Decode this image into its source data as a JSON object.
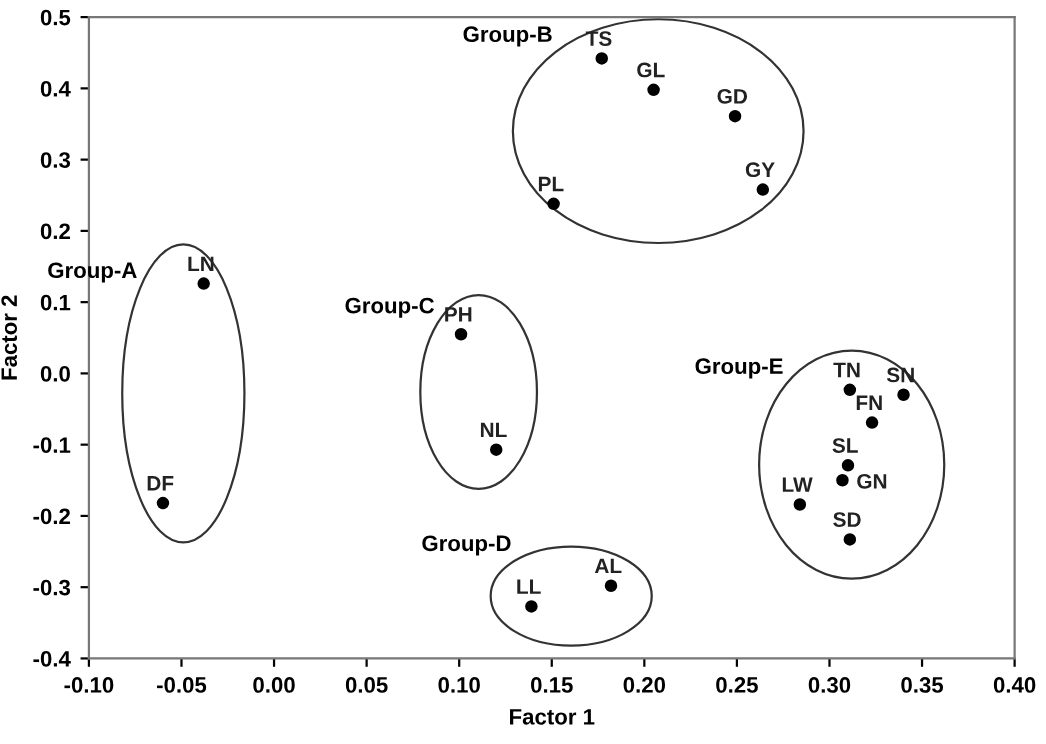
{
  "chart_data": {
    "type": "scatter",
    "xlabel": "Factor 1",
    "ylabel": "Factor 2",
    "xlim": [
      -0.1,
      0.4
    ],
    "xticks": [
      {
        "value": -0.1,
        "label": "-0.10"
      },
      {
        "value": -0.05,
        "label": "-0.05"
      },
      {
        "value": 0,
        "label": "0.00"
      },
      {
        "value": 0.05,
        "label": "0.05"
      },
      {
        "value": 0.1,
        "label": "0.10"
      },
      {
        "value": 0.15,
        "label": "0.15"
      },
      {
        "value": 0.2,
        "label": "0.20"
      },
      {
        "value": 0.25,
        "label": "0.25"
      },
      {
        "value": 0.3,
        "label": "0.30"
      },
      {
        "value": 0.35,
        "label": "0.35"
      },
      {
        "value": 0.4,
        "label": "0.40"
      }
    ],
    "ylim": [
      -0.4,
      0.5
    ],
    "yticks": [
      {
        "value": -0.4,
        "label": "-0.4"
      },
      {
        "value": -0.3,
        "label": "-0.3"
      },
      {
        "value": -0.2,
        "label": "-0.2"
      },
      {
        "value": -0.1,
        "label": "-0.1"
      },
      {
        "value": 0,
        "label": "0.0"
      },
      {
        "value": 0.1,
        "label": "0.1"
      },
      {
        "value": 0.2,
        "label": "0.2"
      },
      {
        "value": 0.3,
        "label": "0.3"
      },
      {
        "value": 0.4,
        "label": "0.4"
      },
      {
        "value": 0.5,
        "label": "0.5"
      }
    ],
    "grid": false,
    "legend": false,
    "marker": "circle",
    "series": [
      {
        "name": "Group-A",
        "color": "#000000",
        "x": [
          -0.038,
          -0.06
        ],
        "values": [
          0.126,
          -0.182
        ],
        "value_labels": [
          "LN",
          "DF"
        ]
      },
      {
        "name": "Group-B",
        "color": "#000000",
        "x": [
          0.177,
          0.205,
          0.249,
          0.264,
          0.151
        ],
        "values": [
          0.442,
          0.398,
          0.361,
          0.258,
          0.238
        ],
        "value_labels": [
          "TS",
          "GL",
          "GD",
          "GY",
          "PL"
        ]
      },
      {
        "name": "Group-C",
        "color": "#000000",
        "x": [
          0.101,
          0.12
        ],
        "values": [
          0.055,
          -0.107
        ],
        "value_labels": [
          "PH",
          "NL"
        ]
      },
      {
        "name": "Group-D",
        "color": "#000000",
        "x": [
          0.139,
          0.182
        ],
        "values": [
          -0.327,
          -0.298
        ],
        "value_labels": [
          "LL",
          "AL"
        ]
      },
      {
        "name": "Group-E",
        "color": "#000000",
        "x": [
          0.311,
          0.34,
          0.323,
          0.31,
          0.307,
          0.284,
          0.311
        ],
        "values": [
          -0.023,
          -0.03,
          -0.069,
          -0.129,
          -0.15,
          -0.184,
          -0.233
        ],
        "value_labels": [
          "TN",
          "SN",
          "FN",
          "SL",
          "GN",
          "LW",
          "SD"
        ]
      }
    ]
  }
}
